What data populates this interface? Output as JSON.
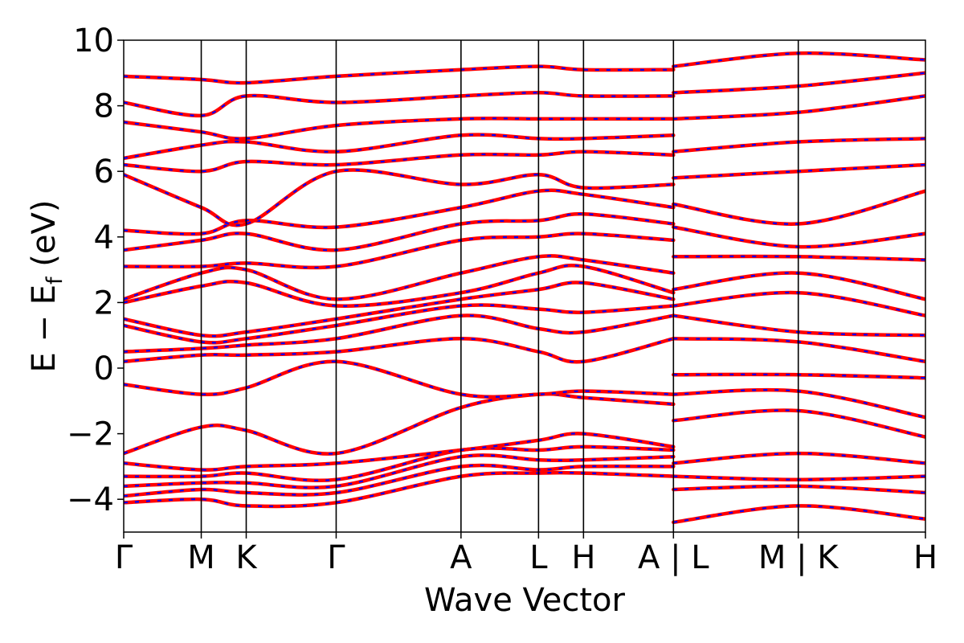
{
  "chart_data": {
    "type": "line",
    "title": "",
    "xlabel": "Wave Vector",
    "ylabel": "E − E_f (eV)",
    "ylabel_main": "E  −  E",
    "ylabel_sub": "f",
    "ylabel_unit": " (eV)",
    "ylim": [
      -5,
      10
    ],
    "yticks": [
      -4,
      -2,
      0,
      2,
      4,
      6,
      8,
      10
    ],
    "ytick_labels": [
      "−4",
      "−2",
      "0",
      "2",
      "4",
      "6",
      "8",
      "10"
    ],
    "xlim": [
      0,
      10.34
    ],
    "kpoints": [
      {
        "label": "Γ",
        "x": 0.0
      },
      {
        "label": "M",
        "x": 1.0
      },
      {
        "label": "K",
        "x": 1.58
      },
      {
        "label": "Γ",
        "x": 2.74
      },
      {
        "label": "A",
        "x": 4.35
      },
      {
        "label": "L",
        "x": 5.35
      },
      {
        "label": "H",
        "x": 5.93
      },
      {
        "label": "A | L",
        "x": 7.09
      },
      {
        "label": "M | K",
        "x": 8.7
      },
      {
        "label": "H",
        "x": 10.34
      }
    ],
    "grid": false,
    "series_colors": {
      "dft": "#ff0000",
      "model": "#0000ff"
    },
    "line_style": {
      "dft": "solid",
      "model": "dashed"
    },
    "bands": [
      {
        "x": [
          0.0,
          1.0,
          1.58,
          2.74,
          4.35,
          5.35,
          5.93,
          7.09
        ],
        "y": [
          -4.1,
          -4.0,
          -4.2,
          -4.1,
          -3.3,
          -3.2,
          -3.2,
          -3.3
        ]
      },
      {
        "x": [
          0.0,
          1.0,
          1.58,
          2.74,
          4.35,
          5.35,
          5.93,
          7.09
        ],
        "y": [
          -3.9,
          -3.7,
          -3.8,
          -3.8,
          -3.0,
          -3.1,
          -3.0,
          -3.0
        ]
      },
      {
        "x": [
          0.0,
          1.0,
          1.58,
          2.74,
          4.35,
          5.35,
          5.93,
          7.09
        ],
        "y": [
          -3.6,
          -3.5,
          -3.5,
          -3.6,
          -2.7,
          -2.8,
          -2.8,
          -2.7
        ]
      },
      {
        "x": [
          0.0,
          1.0,
          1.58,
          2.74,
          4.35,
          5.35,
          5.93,
          7.09
        ],
        "y": [
          -3.3,
          -3.3,
          -3.2,
          -3.4,
          -2.5,
          -2.5,
          -2.4,
          -2.5
        ]
      },
      {
        "x": [
          0.0,
          1.0,
          1.58,
          2.74,
          4.35,
          5.35,
          5.93,
          7.09
        ],
        "y": [
          -2.9,
          -3.1,
          -3.0,
          -2.9,
          -2.5,
          -2.2,
          -2.0,
          -2.4
        ]
      },
      {
        "x": [
          0.0,
          1.0,
          1.58,
          2.74,
          4.35,
          5.35,
          5.93,
          7.09
        ],
        "y": [
          -2.6,
          -1.8,
          -1.9,
          -2.6,
          -1.2,
          -0.8,
          -0.9,
          -1.1
        ]
      },
      {
        "x": [
          0.0,
          1.0,
          1.58,
          2.74,
          4.35,
          5.35,
          5.93,
          7.09
        ],
        "y": [
          -0.5,
          -0.8,
          -0.6,
          0.2,
          -0.8,
          -0.8,
          -0.7,
          -0.8
        ]
      },
      {
        "x": [
          0.0,
          1.0,
          1.58,
          2.74,
          4.35,
          5.35,
          5.93,
          7.09
        ],
        "y": [
          0.2,
          0.4,
          0.4,
          0.5,
          0.9,
          0.5,
          0.2,
          0.9
        ]
      },
      {
        "x": [
          0.0,
          1.0,
          1.58,
          2.74,
          4.35,
          5.35,
          5.93,
          7.09
        ],
        "y": [
          0.5,
          0.6,
          0.7,
          0.9,
          1.6,
          1.2,
          1.1,
          1.6
        ]
      },
      {
        "x": [
          0.0,
          1.0,
          1.58,
          2.74,
          4.35,
          5.35,
          5.93,
          7.09
        ],
        "y": [
          1.3,
          0.8,
          0.9,
          1.3,
          1.9,
          1.8,
          1.7,
          1.9
        ]
      },
      {
        "x": [
          0.0,
          1.0,
          1.58,
          2.74,
          4.35,
          5.35,
          5.93,
          7.09
        ],
        "y": [
          1.5,
          1.0,
          1.1,
          1.5,
          2.1,
          2.4,
          2.6,
          2.1
        ]
      },
      {
        "x": [
          0.0,
          1.0,
          1.58,
          2.74,
          4.35,
          5.35,
          5.93,
          7.09
        ],
        "y": [
          2.0,
          2.5,
          2.6,
          1.9,
          2.3,
          2.9,
          3.1,
          2.3
        ]
      },
      {
        "x": [
          0.0,
          1.0,
          1.58,
          2.74,
          4.35,
          5.35,
          5.93,
          7.09
        ],
        "y": [
          2.1,
          2.9,
          3.0,
          2.1,
          2.9,
          3.4,
          3.3,
          2.9
        ]
      },
      {
        "x": [
          0.0,
          1.0,
          1.58,
          2.74,
          4.35,
          5.35,
          5.93,
          7.09
        ],
        "y": [
          3.1,
          3.1,
          3.2,
          3.1,
          3.9,
          4.0,
          4.1,
          3.9
        ]
      },
      {
        "x": [
          0.0,
          1.0,
          1.58,
          2.74,
          4.35,
          5.35,
          5.93,
          7.09
        ],
        "y": [
          3.6,
          3.9,
          4.1,
          3.6,
          4.4,
          4.5,
          4.7,
          4.4
        ]
      },
      {
        "x": [
          0.0,
          1.0,
          1.58,
          2.74,
          4.35,
          5.35,
          5.93,
          7.09
        ],
        "y": [
          4.2,
          4.1,
          4.5,
          4.3,
          4.9,
          5.4,
          5.3,
          4.9
        ]
      },
      {
        "x": [
          0.0,
          1.0,
          1.58,
          2.74,
          4.35,
          5.35,
          5.93,
          7.09
        ],
        "y": [
          5.9,
          4.9,
          4.4,
          6.0,
          5.6,
          5.9,
          5.5,
          5.6
        ]
      },
      {
        "x": [
          0.0,
          1.0,
          1.58,
          2.74,
          4.35,
          5.35,
          5.93,
          7.09
        ],
        "y": [
          6.2,
          6.0,
          6.3,
          6.2,
          6.5,
          6.5,
          6.6,
          6.5
        ]
      },
      {
        "x": [
          0.0,
          1.0,
          1.58,
          2.74,
          4.35,
          5.35,
          5.93,
          7.09
        ],
        "y": [
          6.4,
          6.8,
          6.9,
          6.6,
          7.1,
          7.0,
          7.0,
          7.1
        ]
      },
      {
        "x": [
          0.0,
          1.0,
          1.58,
          2.74,
          4.35,
          5.35,
          5.93,
          7.09
        ],
        "y": [
          7.5,
          7.2,
          7.0,
          7.4,
          7.6,
          7.6,
          7.6,
          7.6
        ]
      },
      {
        "x": [
          0.0,
          1.0,
          1.58,
          2.74,
          4.35,
          5.35,
          5.93,
          7.09
        ],
        "y": [
          8.1,
          7.7,
          8.3,
          8.1,
          8.3,
          8.4,
          8.3,
          8.3
        ]
      },
      {
        "x": [
          0.0,
          1.0,
          1.58,
          2.74,
          4.35,
          5.35,
          5.93,
          7.09
        ],
        "y": [
          8.9,
          8.8,
          8.7,
          8.9,
          9.1,
          9.2,
          9.1,
          9.1
        ]
      },
      {
        "x": [
          7.09,
          8.7,
          10.34
        ],
        "y": [
          -4.7,
          -4.2,
          -4.6
        ]
      },
      {
        "x": [
          7.09,
          8.7,
          10.34
        ],
        "y": [
          -3.7,
          -3.6,
          -3.8
        ]
      },
      {
        "x": [
          7.09,
          8.7,
          10.34
        ],
        "y": [
          -3.3,
          -3.4,
          -3.3
        ]
      },
      {
        "x": [
          7.09,
          8.7,
          10.34
        ],
        "y": [
          -2.9,
          -2.6,
          -2.9
        ]
      },
      {
        "x": [
          7.09,
          8.7,
          10.34
        ],
        "y": [
          -1.6,
          -1.3,
          -2.1
        ]
      },
      {
        "x": [
          7.09,
          8.7,
          10.34
        ],
        "y": [
          -0.8,
          -0.7,
          -1.5
        ]
      },
      {
        "x": [
          7.09,
          8.7,
          10.34
        ],
        "y": [
          -0.2,
          -0.2,
          -0.3
        ]
      },
      {
        "x": [
          7.09,
          8.7,
          10.34
        ],
        "y": [
          0.9,
          0.8,
          0.2
        ]
      },
      {
        "x": [
          7.09,
          8.7,
          10.34
        ],
        "y": [
          1.6,
          1.1,
          1.0
        ]
      },
      {
        "x": [
          7.09,
          8.7,
          10.34
        ],
        "y": [
          1.9,
          2.3,
          1.6
        ]
      },
      {
        "x": [
          7.09,
          8.7,
          10.34
        ],
        "y": [
          2.4,
          2.9,
          2.1
        ]
      },
      {
        "x": [
          7.09,
          8.7,
          10.34
        ],
        "y": [
          3.4,
          3.4,
          3.3
        ]
      },
      {
        "x": [
          7.09,
          8.7,
          10.34
        ],
        "y": [
          4.3,
          3.7,
          4.1
        ]
      },
      {
        "x": [
          7.09,
          8.7,
          10.34
        ],
        "y": [
          5.0,
          4.4,
          5.4
        ]
      },
      {
        "x": [
          7.09,
          8.7,
          10.34
        ],
        "y": [
          5.8,
          6.0,
          6.2
        ]
      },
      {
        "x": [
          7.09,
          8.7,
          10.34
        ],
        "y": [
          6.6,
          6.9,
          7.0
        ]
      },
      {
        "x": [
          7.09,
          8.7,
          10.34
        ],
        "y": [
          7.6,
          7.8,
          8.3
        ]
      },
      {
        "x": [
          7.09,
          8.7,
          10.34
        ],
        "y": [
          8.4,
          8.6,
          9.0
        ]
      },
      {
        "x": [
          7.09,
          8.7,
          10.34
        ],
        "y": [
          9.2,
          9.6,
          9.4
        ]
      }
    ]
  }
}
